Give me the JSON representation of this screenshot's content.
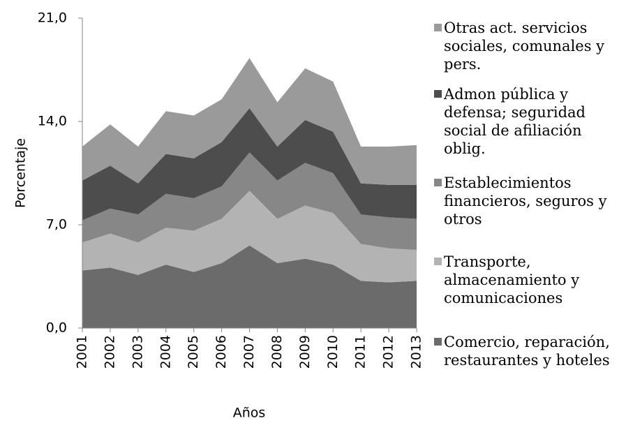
{
  "chart_data": {
    "type": "stacked-area",
    "x_label": "Años",
    "y_label": "Porcentaje",
    "categories": [
      "2001",
      "2002",
      "2003",
      "2004",
      "2005",
      "2006",
      "2007",
      "2008",
      "2009",
      "2010",
      "2011",
      "2012",
      "2013"
    ],
    "series": [
      {
        "name": "Comercio, reparación, restaurantes y hoteles",
        "color": "#6b6b6b",
        "values": [
          3.9,
          4.1,
          3.6,
          4.3,
          3.8,
          4.4,
          5.6,
          4.4,
          4.7,
          4.3,
          3.2,
          3.1,
          3.2
        ]
      },
      {
        "name": "Transporte, almacenamiento y comunicaciones",
        "color": "#b3b3b3",
        "values": [
          1.9,
          2.3,
          2.2,
          2.5,
          2.8,
          3.0,
          3.7,
          3.0,
          3.6,
          3.5,
          2.5,
          2.3,
          2.1
        ]
      },
      {
        "name": "Establecimientos financieros, seguros y otros",
        "color": "#878787",
        "values": [
          1.5,
          1.7,
          1.9,
          2.3,
          2.2,
          2.2,
          2.6,
          2.6,
          2.9,
          2.7,
          2.0,
          2.1,
          2.1
        ]
      },
      {
        "name": "Admon pública y defensa; seguridad social de afiliación oblig.",
        "color": "#4d4d4d",
        "values": [
          2.7,
          2.9,
          2.1,
          2.7,
          2.7,
          3.0,
          3.0,
          2.3,
          2.9,
          2.8,
          2.1,
          2.2,
          2.3
        ]
      },
      {
        "name": "Otras act. servicios sociales, comunales y pers.",
        "color": "#9a9a9a",
        "values": [
          2.3,
          2.8,
          2.5,
          2.9,
          2.9,
          2.9,
          3.4,
          3.0,
          3.5,
          3.4,
          2.5,
          2.6,
          2.7
        ]
      }
    ],
    "ylim": [
      0,
      21
    ],
    "yticks": [
      {
        "value": 0,
        "label": "0,0"
      },
      {
        "value": 7,
        "label": "7,0"
      },
      {
        "value": 14,
        "label": "14,0"
      },
      {
        "value": 21,
        "label": "21,0"
      }
    ],
    "grid": false,
    "legend": "right"
  }
}
